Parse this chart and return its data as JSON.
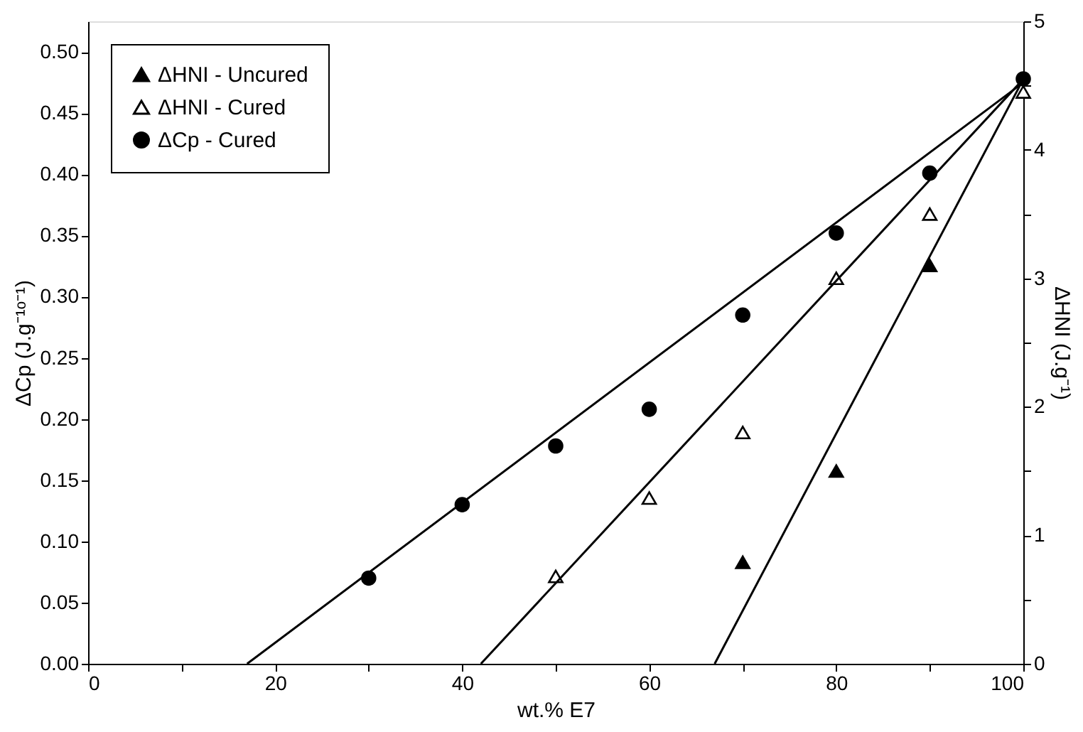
{
  "chart_data": {
    "type": "scatter",
    "xlabel": "wt.% E7",
    "ylabel": "ΔCp (J.g⁻¹ᵒ⁻¹)",
    "y2label": "ΔHNI (J.g⁻¹)",
    "legend": "top left",
    "grid": false,
    "xlim": [
      0,
      100
    ],
    "xticks": [
      0,
      {
        "value": 10,
        "label": null
      },
      20,
      {
        "value": 30,
        "label": null
      },
      40,
      {
        "value": 50,
        "label": null
      },
      60,
      {
        "value": 70,
        "label": null
      },
      80,
      {
        "value": 90,
        "label": null
      },
      100
    ],
    "ylim": [
      0,
      0.525
    ],
    "yticks": [
      {
        "value": 0,
        "label": "0.00"
      },
      {
        "value": 0.05,
        "label": "0.05"
      },
      {
        "value": 0.1,
        "label": "0.10"
      },
      {
        "value": 0.15,
        "label": "0.15"
      },
      {
        "value": 0.2,
        "label": "0.20"
      },
      {
        "value": 0.25,
        "label": "0.25"
      },
      {
        "value": 0.3,
        "label": "0.30"
      },
      {
        "value": 0.35,
        "label": "0.35"
      },
      {
        "value": 0.4,
        "label": "0.40"
      },
      {
        "value": 0.45,
        "label": "0.45"
      },
      {
        "value": 0.5,
        "label": "0.50"
      }
    ],
    "y2lim": [
      0,
      5
    ],
    "y2ticks": [
      0,
      {
        "value": 0.5,
        "label": null
      },
      1,
      {
        "value": 1.5,
        "label": null
      },
      2,
      {
        "value": 2.5,
        "label": null
      },
      3,
      {
        "value": 3.5,
        "label": null
      },
      4,
      {
        "value": 4.5,
        "label": null
      },
      5
    ],
    "series": [
      {
        "name": "ΔHNI - Uncured",
        "axis": "y2",
        "marker": "triangle",
        "color": "#000000",
        "x": [
          70,
          80,
          90
        ],
        "values": [
          0.79,
          1.5,
          3.1
        ]
      },
      {
        "name": "ΔHNI - Cured",
        "axis": "y2",
        "marker": "triangle",
        "color": "#ffffff",
        "x": [
          50,
          60,
          70,
          80,
          90,
          100
        ],
        "values": [
          0.68,
          1.29,
          1.8,
          3.0,
          3.5,
          4.45
        ]
      },
      {
        "name": "ΔCp - Cured",
        "axis": "y",
        "marker": "circle",
        "color": "#000000",
        "x": [
          30,
          40,
          50,
          60,
          70,
          80,
          90,
          100
        ],
        "values": [
          0.07,
          0.13,
          0.178,
          0.208,
          0.285,
          0.352,
          0.401,
          0.478
        ]
      },
      {
        "type": "line",
        "axis": "y",
        "color": "#000000",
        "line_style": "solid",
        "x": [
          17,
          100
        ],
        "values": [
          0,
          0.475
        ]
      },
      {
        "type": "line",
        "axis": "y2",
        "color": "#000000",
        "line_style": "solid",
        "x": [
          42,
          100
        ],
        "values": [
          0,
          4.55
        ]
      },
      {
        "type": "line",
        "axis": "y2",
        "color": "#000000",
        "line_style": "solid",
        "x": [
          67,
          100
        ],
        "values": [
          0,
          4.55
        ]
      }
    ]
  }
}
